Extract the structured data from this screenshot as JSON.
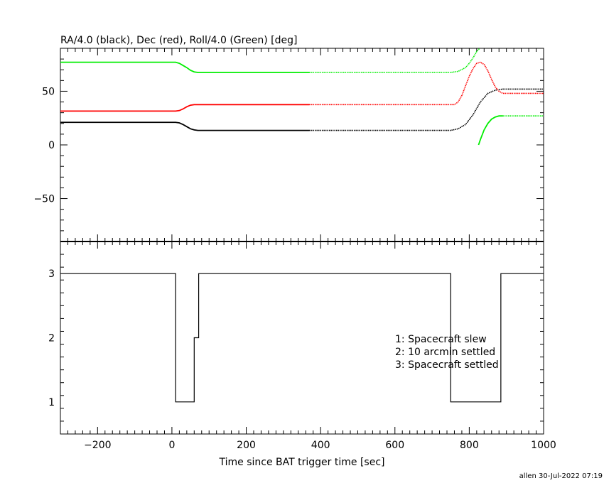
{
  "chart_data": [
    {
      "type": "line",
      "title": "RA/4.0 (black), Dec (red), Roll/4.0 (Green) [deg]",
      "xlabel": "",
      "ylabel": "",
      "xlim": [
        -300,
        1000
      ],
      "ylim": [
        -90,
        90
      ],
      "yticks": [
        -50,
        0,
        50
      ],
      "series": [
        {
          "color": "#000000",
          "x": [
            -300,
            10,
            20,
            30,
            40,
            50,
            60,
            70,
            100,
            370,
            750,
            770,
            790,
            810,
            830,
            850,
            870,
            890,
            1000
          ],
          "y": [
            21,
            21,
            20.5,
            19,
            17,
            15,
            14,
            13.5,
            13.5,
            13.5,
            13.5,
            15,
            19,
            28,
            40,
            48,
            51,
            52,
            52
          ],
          "dotted_from": 370
        },
        {
          "color": "#ff0000",
          "x": [
            -300,
            10,
            20,
            30,
            40,
            50,
            60,
            70,
            100,
            370,
            760,
            770,
            780,
            790,
            800,
            810,
            820,
            830,
            840,
            850,
            860,
            870,
            880,
            890,
            1000
          ],
          "y": [
            31.5,
            31.5,
            32,
            33.5,
            35.5,
            37,
            37.5,
            37.5,
            37.5,
            37.5,
            37.5,
            40,
            46,
            55,
            64,
            71,
            76,
            77,
            75,
            69,
            61,
            54,
            50,
            48,
            48
          ],
          "dotted_from": 370
        },
        {
          "color": "#00ee00",
          "x": [
            -300,
            10,
            20,
            30,
            40,
            50,
            60,
            70,
            100,
            370,
            750,
            770,
            790,
            800,
            810,
            820,
            828
          ],
          "y": [
            77,
            77,
            76,
            74,
            72,
            69.5,
            68,
            67.5,
            67.5,
            67.5,
            67.5,
            68.5,
            72,
            76,
            81,
            87,
            90
          ],
          "dotted_from": 370
        },
        {
          "color": "#00ee00",
          "x": [
            825,
            830,
            840,
            850,
            860,
            870,
            880,
            890,
            1000
          ],
          "y": [
            0,
            5,
            14,
            20,
            24,
            26,
            27,
            27,
            27
          ],
          "dotted_from": 890
        }
      ]
    },
    {
      "type": "line",
      "title": "",
      "xlabel": "Time since BAT trigger time [sec]",
      "ylabel": "",
      "xlim": [
        -300,
        1000
      ],
      "ylim": [
        0.5,
        3.5
      ],
      "yticks": [
        1,
        2,
        3
      ],
      "xticks": [
        -200,
        0,
        200,
        400,
        600,
        800,
        1000
      ],
      "step": {
        "x": [
          -300,
          10,
          10,
          60,
          60,
          72,
          72,
          1000
        ],
        "y": [
          3,
          3,
          1,
          1,
          2,
          2,
          3,
          3
        ]
      },
      "step_segments": [
        {
          "x": [
            -300,
            10,
            10,
            60,
            60,
            72,
            72,
            750,
            750,
            885,
            885,
            1000
          ],
          "y": [
            3,
            3,
            1,
            1,
            2,
            2,
            3,
            3,
            1,
            1,
            3,
            3
          ]
        }
      ],
      "legend": [
        "1: Spacecraft slew",
        "2: 10 arcmin settled",
        "3: Spacecraft settled"
      ]
    }
  ],
  "footer": "allen 30-Jul-2022 07:19"
}
